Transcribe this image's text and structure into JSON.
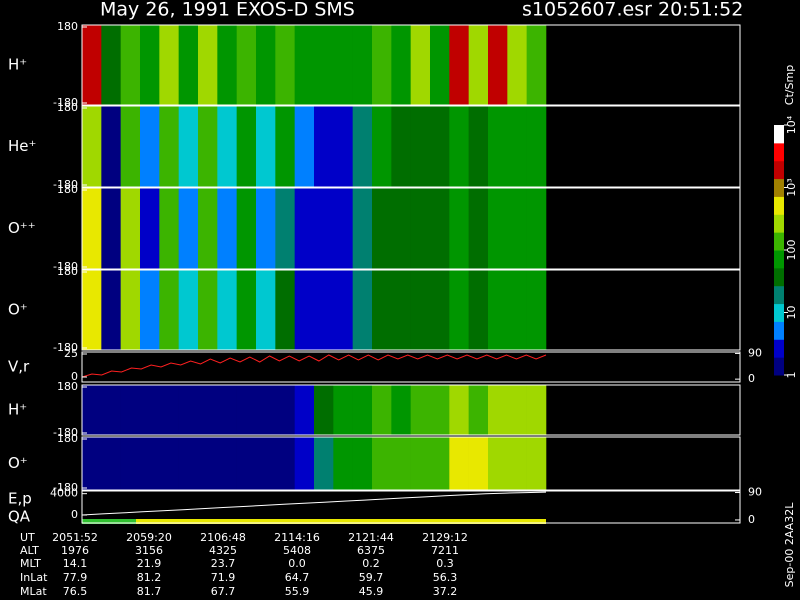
{
  "header": {
    "title": "May 26, 1991   EXOS-D SMS",
    "file": "s1052607.esr  20:51:52"
  },
  "colorbar": {
    "title": "Ct/Smp",
    "zlim": [
      1,
      10000
    ],
    "log": true,
    "colors": [
      "#000080",
      "#0000c8",
      "#0080ff",
      "#00c8d0",
      "#008070",
      "#006e00",
      "#009600",
      "#3cb400",
      "#a0d800",
      "#e8e800",
      "#a08000",
      "#c00000",
      "#ff0000",
      "#ffffff"
    ],
    "ticks": [
      {
        "value": 10000,
        "label": "10⁴"
      },
      {
        "value": 1000,
        "label": "10³"
      },
      100,
      10,
      1
    ]
  },
  "chart_data": [
    {
      "type": "heatmap",
      "ylabel": "H⁺",
      "ylim": [
        -180,
        180
      ],
      "yticks": [
        -180,
        180
      ],
      "values": [
        2000,
        30,
        150,
        60,
        200,
        60,
        200,
        60,
        150,
        60,
        150,
        80,
        60,
        80,
        60,
        150,
        60,
        200,
        60,
        1500,
        200,
        1500,
        200,
        150
      ]
    },
    {
      "type": "heatmap",
      "ylabel": "He⁺",
      "ylim": [
        -180,
        180
      ],
      "yticks": [
        -180,
        180
      ],
      "values": [
        300,
        1.5,
        150,
        5,
        150,
        10,
        100,
        10,
        80,
        10,
        60,
        5,
        3,
        3,
        20,
        60,
        40,
        40,
        50,
        60,
        50,
        60,
        80,
        60
      ]
    },
    {
      "type": "heatmap",
      "ylabel": "O⁺⁺",
      "ylim": [
        -180,
        180
      ],
      "yticks": [
        -180,
        180
      ],
      "values": [
        500,
        1.5,
        200,
        3,
        150,
        5,
        100,
        5,
        60,
        5,
        20,
        3,
        2,
        2,
        15,
        50,
        40,
        40,
        50,
        60,
        50,
        60,
        60,
        60
      ]
    },
    {
      "type": "heatmap",
      "ylabel": "O⁺",
      "ylim": [
        -180,
        180
      ],
      "yticks": [
        -180,
        180
      ],
      "values": [
        500,
        1.5,
        300,
        5,
        150,
        8,
        100,
        8,
        80,
        8,
        30,
        3,
        2,
        2,
        20,
        50,
        40,
        40,
        50,
        60,
        50,
        60,
        80,
        60
      ]
    },
    {
      "type": "line",
      "ylabel": "V,r",
      "ylim": [
        -5,
        25
      ],
      "yticks": [
        0,
        25
      ],
      "y2lim": [
        -10,
        95
      ],
      "y2ticks": [
        0,
        90
      ],
      "color": "#ff2020",
      "values": [
        0,
        3,
        2,
        6,
        5,
        9,
        8,
        12,
        10,
        14,
        12,
        16,
        13,
        18,
        14,
        19,
        15,
        20,
        15,
        21,
        16,
        21,
        16,
        21,
        16,
        22,
        17,
        22,
        17,
        22,
        17,
        22,
        18,
        22,
        18,
        22,
        18,
        22,
        18,
        22,
        18,
        22,
        18,
        22,
        18,
        22,
        18,
        22
      ]
    },
    {
      "type": "heatmap",
      "ylabel": "H⁺",
      "ylim": [
        -180,
        180
      ],
      "yticks": [
        -180,
        180
      ],
      "values": [
        1.5,
        1.5,
        1.5,
        1.5,
        1.5,
        1.5,
        1.5,
        1.5,
        1.5,
        1.5,
        1.5,
        3,
        40,
        60,
        80,
        100,
        80,
        150,
        100,
        200,
        150,
        300,
        200,
        200
      ]
    },
    {
      "type": "heatmap",
      "ylabel": "O⁺",
      "ylim": [
        -180,
        180
      ],
      "yticks": [
        -180,
        180
      ],
      "values": [
        1.5,
        1.5,
        1.5,
        1.5,
        1.5,
        1.5,
        1.5,
        1.5,
        1.5,
        1.5,
        1.5,
        3,
        20,
        60,
        80,
        100,
        100,
        150,
        150,
        500,
        500,
        300,
        300,
        300
      ]
    },
    {
      "type": "line",
      "ylabel": "E,p",
      "ylabel2": "QA",
      "ylim": [
        -1500,
        4500
      ],
      "yticks": [
        0,
        4000
      ],
      "y2lim": [
        -10,
        95
      ],
      "y2ticks": [
        0,
        90
      ],
      "color": "#ffffff",
      "values": [
        0,
        200,
        400,
        600,
        800,
        1000,
        1200,
        1400,
        1600,
        1800,
        2000,
        2200,
        2400,
        2600,
        2800,
        3000,
        3200,
        3400,
        3600,
        3800,
        4000,
        4100,
        4200,
        4300
      ]
    }
  ],
  "table": {
    "rows": [
      [
        "UT",
        "2051:52",
        "2059:20",
        "2106:48",
        "2114:16",
        "2121:44",
        "2129:12"
      ],
      [
        "ALT",
        "1976",
        "3156",
        "4325",
        "5408",
        "6375",
        "7211"
      ],
      [
        "MLT",
        "14.1",
        "21.9",
        "23.7",
        "0.0",
        "0.2",
        "0.3"
      ],
      [
        "InLat",
        "77.9",
        "81.2",
        "71.9",
        "64.7",
        "59.7",
        "56.3"
      ],
      [
        "MLat",
        "76.5",
        "81.7",
        "67.7",
        "55.9",
        "45.9",
        "37.2"
      ]
    ]
  },
  "footer": "Sep-00 2AA32L"
}
